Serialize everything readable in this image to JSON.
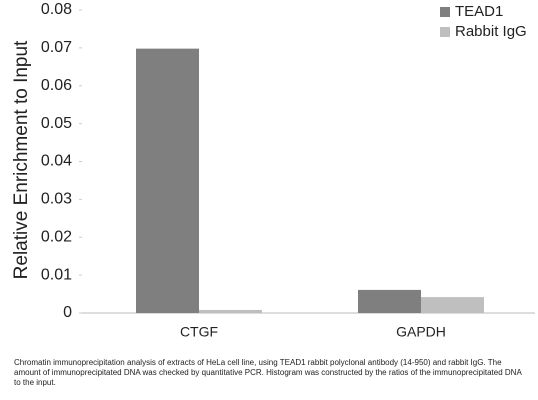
{
  "chart_data": {
    "type": "bar",
    "y_label": "Relative Enrichment to Input",
    "categories": [
      "CTGF",
      "GAPDH"
    ],
    "series": [
      {
        "name": "TEAD1",
        "color": "#7f7f7f",
        "values": [
          0.0698,
          0.0061
        ]
      },
      {
        "name": "Rabbit IgG",
        "color": "#bfbfbf",
        "values": [
          0.0008,
          0.0042
        ]
      }
    ],
    "ylim": [
      0,
      0.08
    ],
    "yticks": [
      0,
      0.01,
      0.02,
      0.03,
      0.04,
      0.05,
      0.06,
      0.07,
      0.08
    ],
    "legend": "top-right"
  },
  "caption": "Chromatin immunoprecipitation analysis of extracts of HeLa cell line, using TEAD1 rabbit polyclonal antibody (14-950) and rabbit IgG. The amount of immunoprecipitated DNA was checked by quantitative PCR. Histogram was constructed by the ratios of the immunoprecipitated DNA to the input."
}
